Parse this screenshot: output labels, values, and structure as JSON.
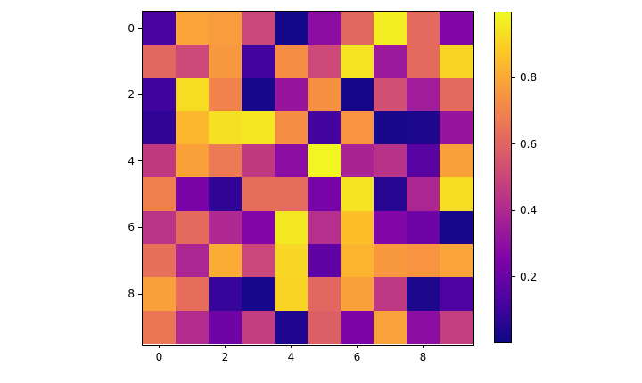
{
  "figure": {
    "background": "#ffffff",
    "spine_color": "#000000",
    "tick_label_color": "#000000"
  },
  "chart_data": {
    "type": "heatmap",
    "title": "",
    "xlabel": "",
    "ylabel": "",
    "n_rows": 10,
    "n_cols": 10,
    "colormap": "plasma",
    "colormap_anchors": [
      {
        "t": 0.0,
        "color": "#0d0887"
      },
      {
        "t": 0.125,
        "color": "#4b03a1"
      },
      {
        "t": 0.25,
        "color": "#7e03a8"
      },
      {
        "t": 0.375,
        "color": "#a82296"
      },
      {
        "t": 0.5,
        "color": "#cb4679"
      },
      {
        "t": 0.625,
        "color": "#e56b5d"
      },
      {
        "t": 0.75,
        "color": "#f89441"
      },
      {
        "t": 0.875,
        "color": "#fdc527"
      },
      {
        "t": 1.0,
        "color": "#f0f921"
      }
    ],
    "values": [
      [
        0.12,
        0.79,
        0.77,
        0.5,
        0.01,
        0.29,
        0.61,
        0.97,
        0.62,
        0.26
      ],
      [
        0.61,
        0.51,
        0.76,
        0.11,
        0.73,
        0.51,
        0.95,
        0.34,
        0.62,
        0.91
      ],
      [
        0.1,
        0.93,
        0.7,
        0.02,
        0.32,
        0.74,
        0.015,
        0.53,
        0.35,
        0.62
      ],
      [
        0.07,
        0.84,
        0.94,
        0.96,
        0.73,
        0.11,
        0.75,
        0.025,
        0.03,
        0.32
      ],
      [
        0.46,
        0.78,
        0.67,
        0.46,
        0.29,
        0.99,
        0.38,
        0.43,
        0.16,
        0.78
      ],
      [
        0.69,
        0.24,
        0.07,
        0.63,
        0.63,
        0.23,
        0.95,
        0.055,
        0.39,
        0.93
      ],
      [
        0.44,
        0.62,
        0.4,
        0.26,
        0.96,
        0.42,
        0.86,
        0.26,
        0.21,
        0.02
      ],
      [
        0.64,
        0.39,
        0.81,
        0.5,
        0.92,
        0.18,
        0.83,
        0.76,
        0.75,
        0.79
      ],
      [
        0.78,
        0.63,
        0.085,
        0.02,
        0.91,
        0.61,
        0.78,
        0.455,
        0.03,
        0.13
      ],
      [
        0.66,
        0.41,
        0.215,
        0.47,
        0.035,
        0.585,
        0.245,
        0.785,
        0.29,
        0.475
      ]
    ],
    "x_ticks": {
      "labels": [
        "0",
        "2",
        "4",
        "6",
        "8"
      ],
      "values": [
        0,
        2,
        4,
        6,
        8
      ]
    },
    "y_ticks": {
      "labels": [
        "0",
        "2",
        "4",
        "6",
        "8"
      ],
      "values": [
        0,
        2,
        4,
        6,
        8
      ]
    },
    "grid": false,
    "colorbar": {
      "position": "right",
      "vmin": 0.0,
      "vmax": 1.0,
      "tick_labels": [
        "0.2",
        "0.4",
        "0.6",
        "0.8"
      ],
      "tick_values": [
        0.2,
        0.4,
        0.6,
        0.8
      ]
    }
  }
}
